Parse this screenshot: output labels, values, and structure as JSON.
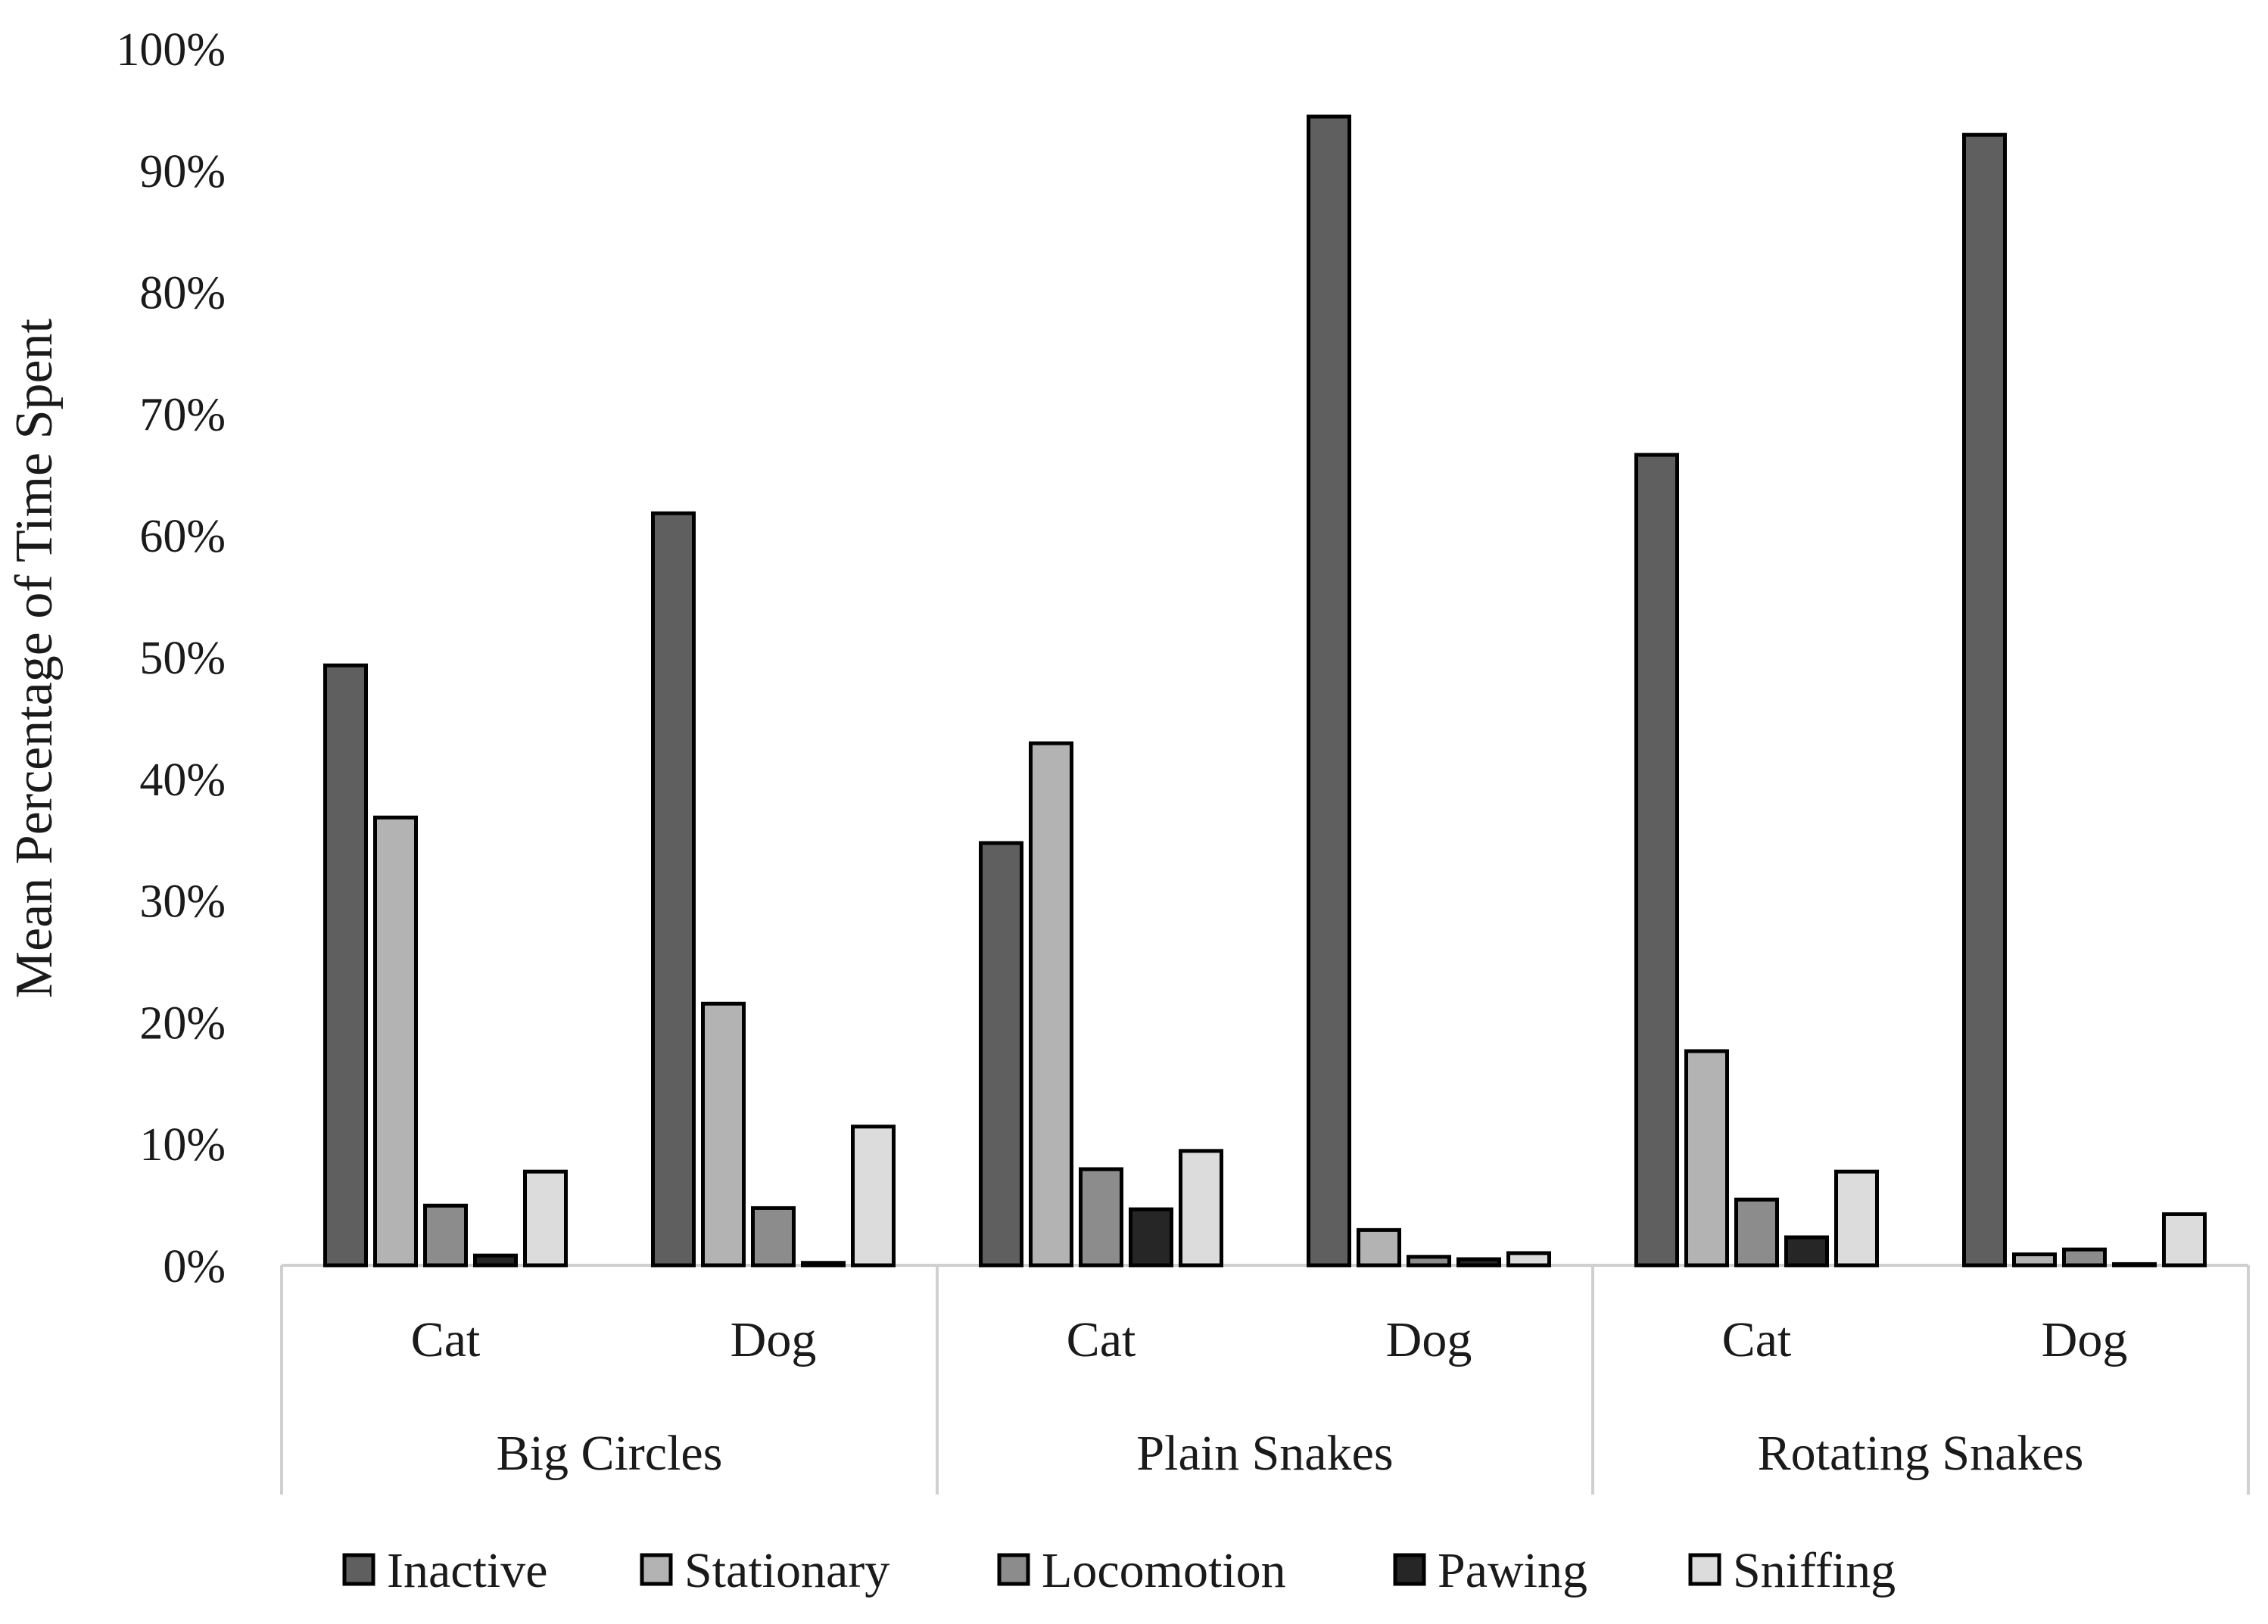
{
  "chart_data": {
    "type": "bar",
    "title": "",
    "xlabel": "",
    "ylabel": "Mean Percentage of Time Spent",
    "ylim": [
      0,
      100
    ],
    "yticks": [
      "0%",
      "10%",
      "20%",
      "30%",
      "40%",
      "50%",
      "60%",
      "70%",
      "80%",
      "90%",
      "100%"
    ],
    "grid": false,
    "legend_position": "bottom",
    "groups": [
      {
        "label": "Big Circles",
        "categories": [
          "Cat",
          "Dog"
        ]
      },
      {
        "label": "Plain Snakes",
        "categories": [
          "Cat",
          "Dog"
        ]
      },
      {
        "label": "Rotating Snakes",
        "categories": [
          "Cat",
          "Dog"
        ]
      }
    ],
    "categories": [
      "Big Circles - Cat",
      "Big Circles - Dog",
      "Plain Snakes - Cat",
      "Plain Snakes - Dog",
      "Rotating Snakes - Cat",
      "Rotating Snakes - Dog"
    ],
    "series": [
      {
        "name": "Inactive",
        "color": "#5f5f5f",
        "values": [
          49.3,
          61.8,
          34.7,
          94.4,
          66.6,
          92.9
        ]
      },
      {
        "name": "Stationary",
        "color": "#b3b3b3",
        "values": [
          36.8,
          21.5,
          42.9,
          2.9,
          17.6,
          0.9
        ]
      },
      {
        "name": "Locomotion",
        "color": "#8c8c8c",
        "values": [
          4.9,
          4.7,
          7.9,
          0.7,
          5.4,
          1.3
        ]
      },
      {
        "name": "Pawing",
        "color": "#262626",
        "values": [
          0.8,
          0.2,
          4.6,
          0.5,
          2.3,
          0.1
        ]
      },
      {
        "name": "Sniffing",
        "color": "#dcdcdc",
        "values": [
          7.7,
          11.4,
          9.4,
          1.0,
          7.7,
          4.2
        ]
      }
    ]
  }
}
